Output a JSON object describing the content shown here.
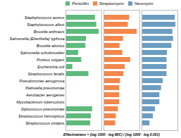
{
  "chart_data": {
    "type": "bar",
    "orientation": "horizontal",
    "categories": [
      "Staphylococcus aureus",
      "Staphylococcus albus",
      "Brucella anthracis",
      "Salmonella (Eberthella) typhosa",
      "Brucella abortus",
      "Salmonella schottmuelleri",
      "Proteus vulgaris",
      "Escherichia coli",
      "Streptococcus fecalis",
      "Pseudomonas aeruginosa",
      "Klebsiella pneumoniae",
      "Aerobacter aerogenes",
      "Mycobacterium tuberculosis",
      "Diplococcus pneumoniae",
      "Streptococcus hemolyticus",
      "Streptococcus viridans"
    ],
    "series": [
      {
        "name": "Penicillin",
        "color": "#5fba7d",
        "values": [
          0.86,
          0.9,
          0.97,
          0.6,
          0.58,
          0.37,
          0.46,
          0.2,
          0.67,
          0.0,
          0.0,
          0.0,
          0.01,
          0.78,
          0.74,
          0.72
        ]
      },
      {
        "name": "Streptomycin",
        "color": "#f4874b",
        "values": [
          0.75,
          0.71,
          0.97,
          0.57,
          0.47,
          0.55,
          0.78,
          0.62,
          0.58,
          0.48,
          0.46,
          0.46,
          0.46,
          0.42,
          0.36,
          0.34
        ]
      },
      {
        "name": "Neomycin",
        "color": "#6b9dc2",
        "values": [
          0.97,
          0.99,
          0.9,
          0.92,
          0.87,
          0.74,
          0.73,
          0.73,
          0.73,
          0.62,
          0.57,
          0.52,
          0.52,
          0.39,
          0.33,
          0.23
        ]
      }
    ],
    "xlabel": "Effectiveness = (log 1000 - log MIC) / (log 1000 - log 0.001)",
    "xlim": [
      0,
      1.05
    ],
    "tick_labels": "y",
    "legend": "top",
    "grid": false
  }
}
